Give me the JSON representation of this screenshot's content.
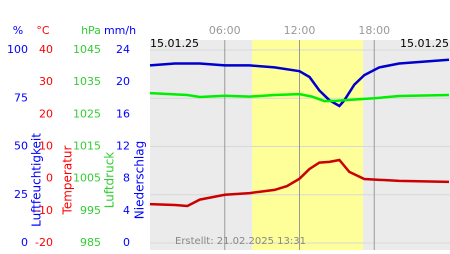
{
  "chart_data": {
    "type": "line",
    "date_left": "15.01.25",
    "date_right": "15.01.25",
    "created": "Erstellt: 21.02.2025 13:31",
    "xlim": [
      0,
      24
    ],
    "xticks": [
      {
        "value": 6,
        "label": "06:00"
      },
      {
        "value": 12,
        "label": "12:00"
      },
      {
        "value": 18,
        "label": "18:00"
      }
    ],
    "daylight": [
      8.2,
      17.1
    ],
    "grid": true,
    "axes": [
      {
        "unit": "%",
        "label": "Luftfeuchtigkeit",
        "color": "#0000ff",
        "ylim": [
          0,
          100
        ],
        "yticks": [
          0,
          25,
          50,
          75,
          100
        ]
      },
      {
        "unit": "°C",
        "label": "Temperatur",
        "color": "#ff0000",
        "ylim": [
          -20,
          40
        ],
        "yticks": [
          -20,
          -10,
          0,
          10,
          20,
          30,
          40
        ]
      },
      {
        "unit": "hPa",
        "label": "Luftdruck",
        "color": "#33cc33",
        "ylim": [
          985,
          1045
        ],
        "yticks": [
          985,
          995,
          1005,
          1015,
          1025,
          1035,
          1045
        ]
      },
      {
        "unit": "mm/h",
        "label": "Niederschlag",
        "color": "#0000ff",
        "ylim": [
          0,
          24
        ],
        "yticks": [
          0,
          4,
          8,
          12,
          16,
          20,
          24
        ]
      }
    ],
    "series": [
      {
        "axis": 0,
        "color": "#0000cc",
        "x": [
          0,
          2,
          4,
          6,
          8,
          10,
          12,
          12.8,
          13.6,
          14.4,
          15.2,
          15.6,
          16.4,
          17.2,
          18.4,
          20,
          24
        ],
        "values": [
          92,
          93,
          93,
          92,
          92,
          91,
          89,
          86,
          79,
          74,
          71,
          74,
          82,
          87,
          91,
          93,
          95
        ]
      },
      {
        "axis": 1,
        "color": "#cc0000",
        "x": [
          0,
          2,
          3,
          4,
          6,
          8,
          10,
          11,
          12,
          12.8,
          13.6,
          14.4,
          15.2,
          16,
          17.2,
          20,
          24
        ],
        "values": [
          -7.9,
          -8.2,
          -8.5,
          -6.5,
          -5,
          -4.5,
          -3.5,
          -2.3,
          0,
          3,
          5,
          5.2,
          5.8,
          2.1,
          -0.1,
          -0.7,
          -1
        ]
      },
      {
        "axis": 2,
        "color": "#00ee00",
        "x": [
          0,
          3,
          4,
          6,
          8,
          10,
          12,
          13,
          14,
          15,
          16,
          18,
          20,
          24
        ],
        "values": [
          1031.6,
          1031,
          1030.4,
          1030.8,
          1030.5,
          1031,
          1031.3,
          1030.5,
          1029.1,
          1029.2,
          1029.5,
          1030,
          1030.7,
          1031
        ]
      }
    ]
  }
}
